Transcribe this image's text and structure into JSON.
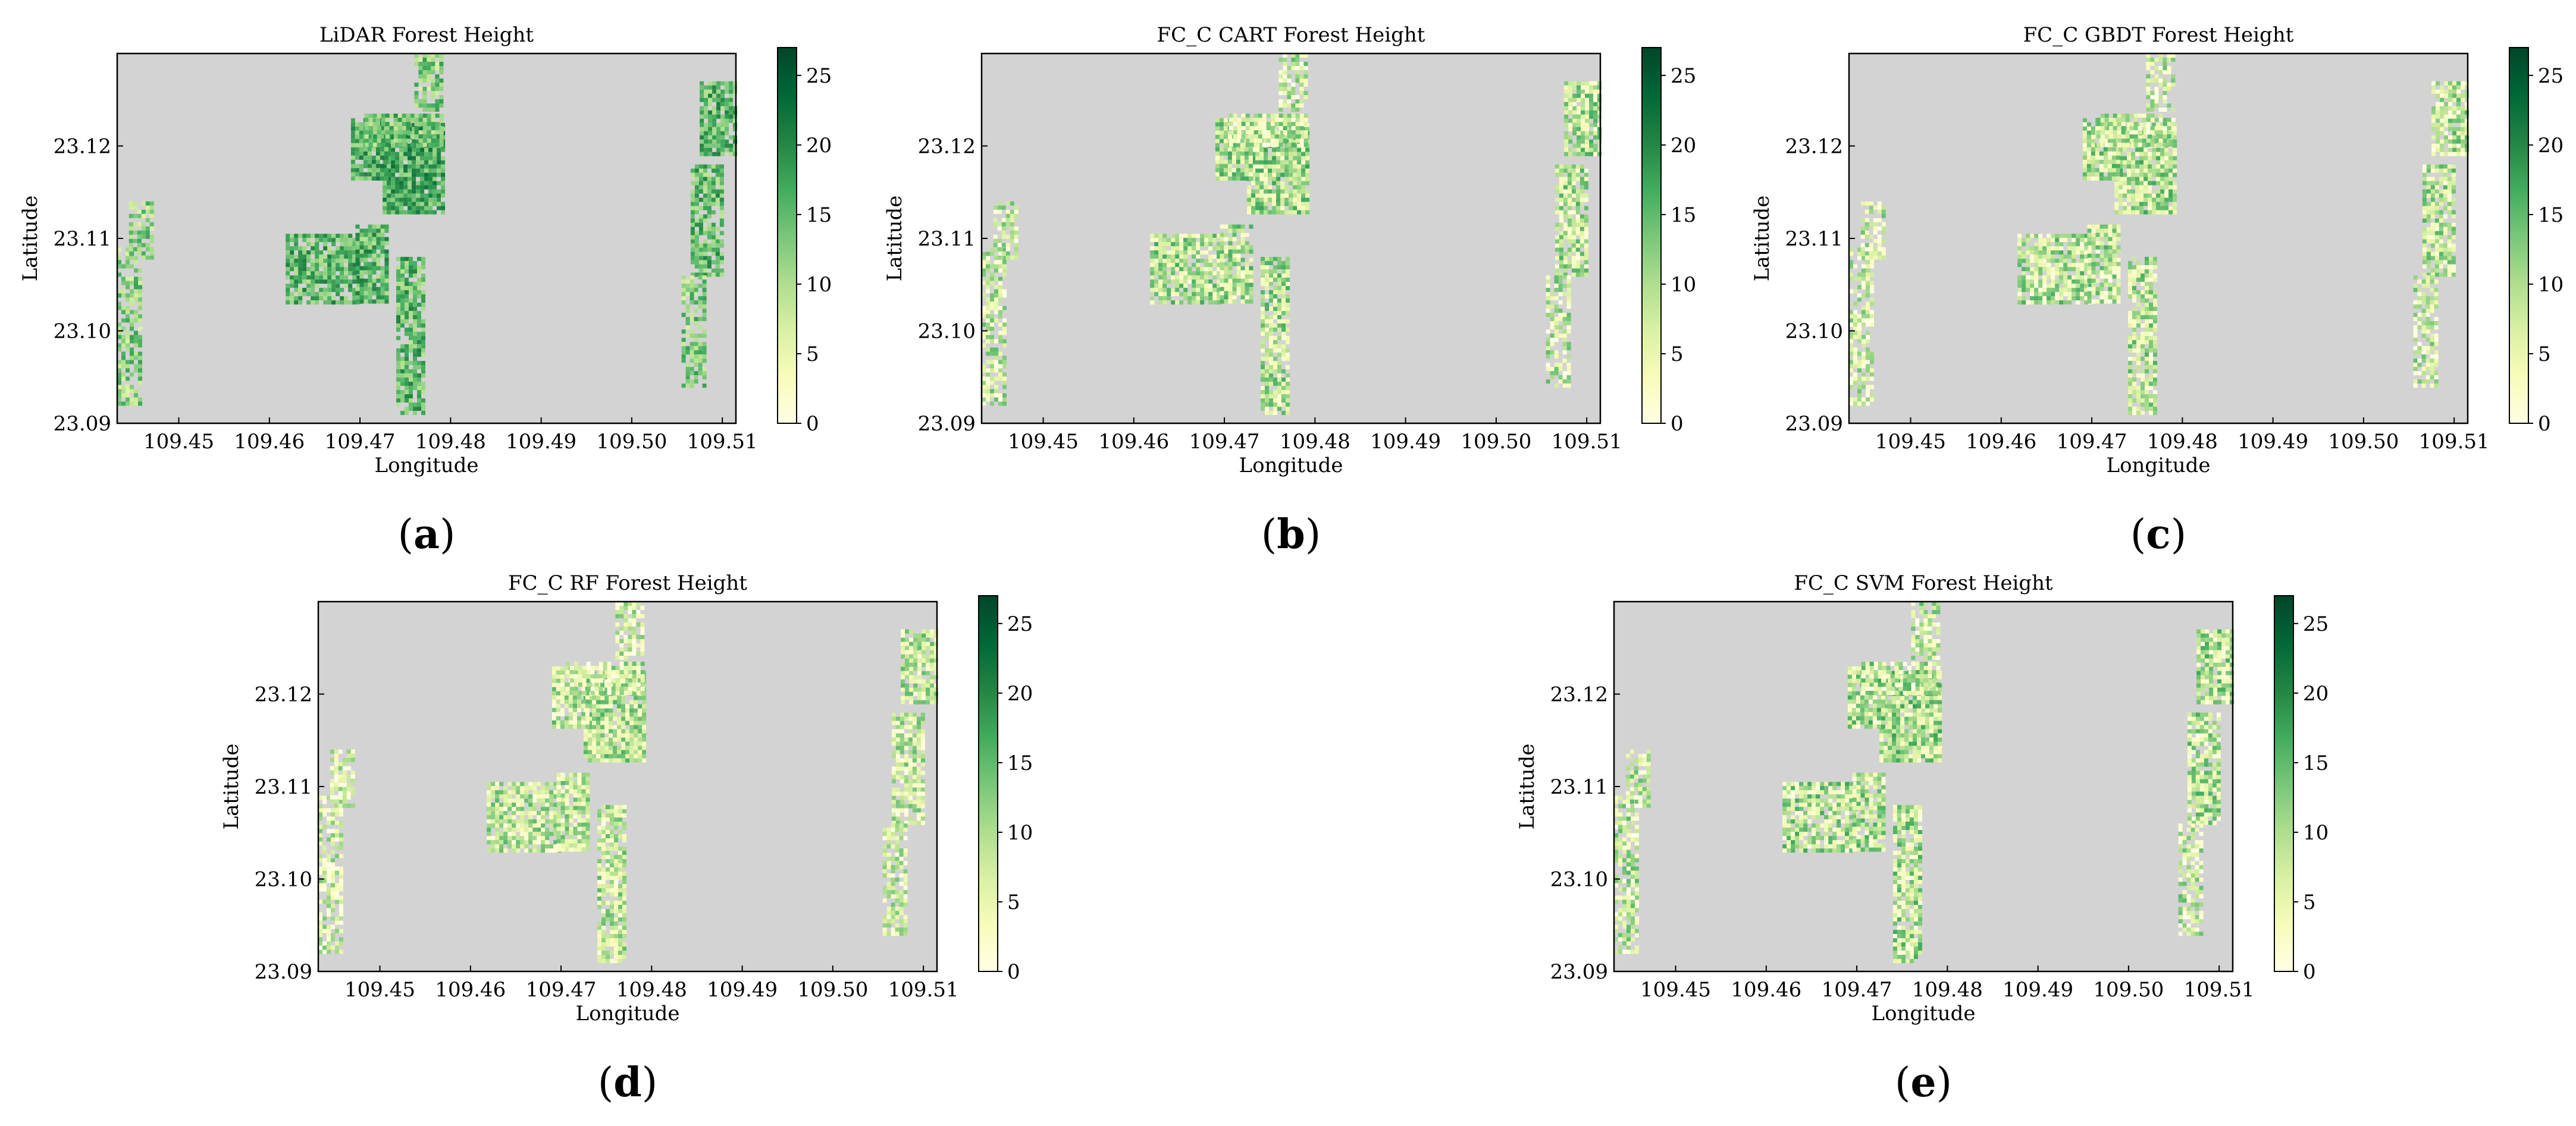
{
  "figure": {
    "panels": [
      {
        "id": "a",
        "title": "LiDAR Forest Height",
        "caption": "a",
        "variant": "lidar"
      },
      {
        "id": "b",
        "title": "FC_C CART Forest Height",
        "caption": "b",
        "variant": "cart"
      },
      {
        "id": "c",
        "title": "FC_C GBDT Forest Height",
        "caption": "c",
        "variant": "gbdt"
      },
      {
        "id": "d",
        "title": "FC_C RF Forest Height",
        "caption": "d",
        "variant": "rf"
      },
      {
        "id": "e",
        "title": "FC_C SVM Forest Height",
        "caption": "e",
        "variant": "svm"
      }
    ],
    "xlabel": "Longitude",
    "ylabel": "Latitude",
    "x_ticks": [
      "109.45",
      "109.46",
      "109.47",
      "109.48",
      "109.49",
      "109.50",
      "109.51"
    ],
    "y_ticks": [
      "23.09",
      "23.10",
      "23.11",
      "23.12"
    ],
    "colorbar_ticks": [
      "0",
      "5",
      "10",
      "15",
      "20",
      "25"
    ],
    "colorbar_range": [
      0,
      27
    ],
    "colors": {
      "background": "#d3d3d3",
      "colormap": [
        "#ffffe5",
        "#f7fcb9",
        "#d9f0a3",
        "#addd8e",
        "#78c679",
        "#41ab5d",
        "#238443",
        "#006837",
        "#004529"
      ]
    }
  }
}
